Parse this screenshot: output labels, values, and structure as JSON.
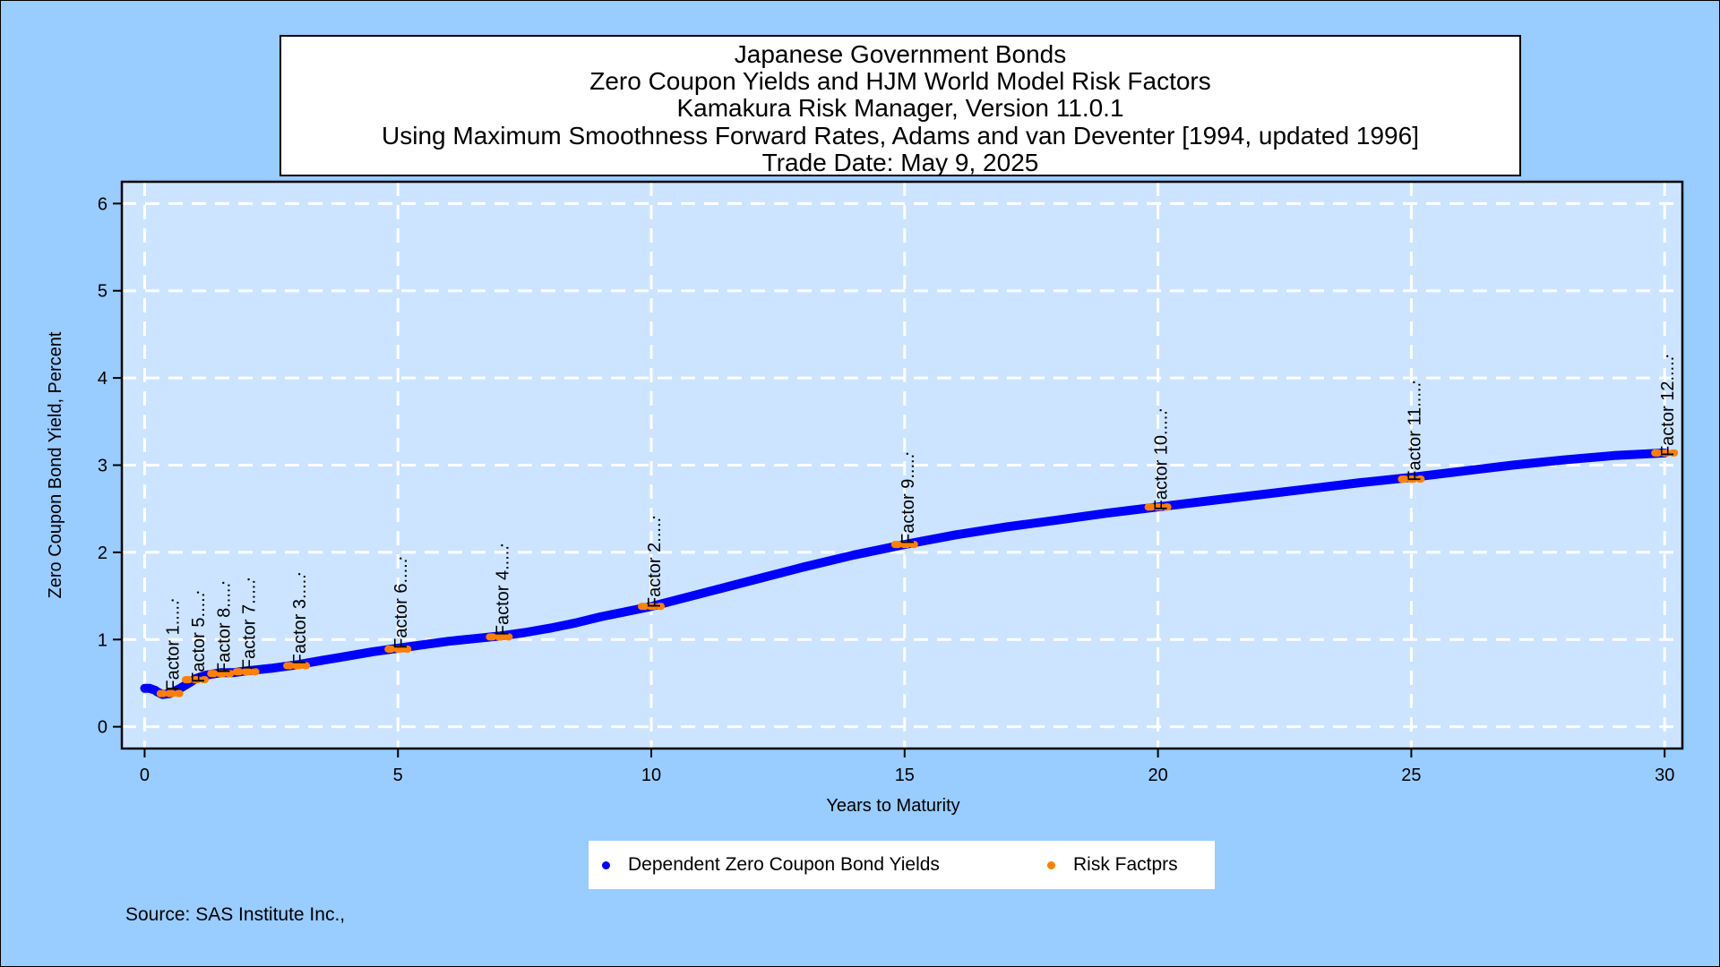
{
  "title_lines": [
    "Japanese Government Bonds",
    "Zero Coupon Yields and HJM World Model Risk Factors",
    "Kamakura Risk Manager, Version 11.0.1",
    "Using Maximum Smoothness Forward Rates, Adams and van Deventer [1994, updated 1996]",
    "Trade Date: May 9, 2025"
  ],
  "legend": {
    "yields_label": "Dependent Zero Coupon Bond Yields",
    "factors_label": "Risk Factprs"
  },
  "source": "Source: SAS Institute Inc.,",
  "colors": {
    "background": "#99ccff",
    "plot_area": "#cce4ff",
    "yield_curve": "#0000ff",
    "risk_factors": "#ff8000",
    "grid": "#ffffff"
  },
  "chart_data": {
    "type": "line",
    "xlabel": "Years to Maturity",
    "ylabel": "Zero Coupon Bond Yield, Percent",
    "xlim": [
      -0.45,
      30.35
    ],
    "ylim": [
      -0.25,
      6.25
    ],
    "x_ticks": [
      0,
      5,
      10,
      15,
      20,
      25,
      30
    ],
    "y_ticks": [
      0,
      1,
      2,
      3,
      4,
      5,
      6
    ],
    "grid": true,
    "legend_position": "bottom",
    "series": [
      {
        "name": "Dependent Zero Coupon Bond Yields",
        "kind": "curve",
        "x": [
          0,
          0.1,
          0.2,
          0.25,
          0.35,
          0.5,
          0.7,
          0.9,
          1.0,
          1.2,
          1.5,
          1.75,
          2.0,
          2.5,
          3.0,
          3.5,
          4.0,
          4.5,
          5.0,
          5.5,
          6.0,
          6.5,
          7.0,
          7.5,
          8.0,
          8.5,
          9.0,
          9.5,
          10.0,
          11.0,
          12.0,
          13.0,
          14.0,
          15.0,
          16.0,
          17.0,
          18.0,
          19.0,
          20.0,
          21.0,
          22.0,
          23.0,
          24.0,
          25.0,
          26.0,
          27.0,
          28.0,
          29.0,
          30.0
        ],
        "y": [
          0.44,
          0.44,
          0.42,
          0.4,
          0.37,
          0.38,
          0.44,
          0.51,
          0.55,
          0.59,
          0.62,
          0.62,
          0.64,
          0.67,
          0.71,
          0.76,
          0.81,
          0.86,
          0.9,
          0.94,
          0.98,
          1.01,
          1.04,
          1.08,
          1.13,
          1.19,
          1.26,
          1.32,
          1.38,
          1.53,
          1.68,
          1.83,
          1.97,
          2.09,
          2.2,
          2.29,
          2.37,
          2.45,
          2.52,
          2.59,
          2.66,
          2.73,
          2.8,
          2.86,
          2.93,
          3.0,
          3.06,
          3.11,
          3.14
        ]
      },
      {
        "name": "Risk Factprs",
        "kind": "factors",
        "points": [
          {
            "label": "Factor 1.....",
            "x": 0.5,
            "y": 0.38,
            "label_y": 1.45
          },
          {
            "label": "Factor 5.....",
            "x": 1.0,
            "y": 0.54,
            "label_y": 1.54
          },
          {
            "label": "Factor 8.....",
            "x": 1.5,
            "y": 0.61,
            "label_y": 1.65
          },
          {
            "label": "Factor 7.....",
            "x": 2.0,
            "y": 0.63,
            "label_y": 1.69
          },
          {
            "label": "Factor 3.....",
            "x": 3.0,
            "y": 0.7,
            "label_y": 1.75
          },
          {
            "label": "Factor 6.....",
            "x": 5.0,
            "y": 0.89,
            "label_y": 1.93
          },
          {
            "label": "Factor 4.....",
            "x": 7.0,
            "y": 1.03,
            "label_y": 2.08
          },
          {
            "label": "Factor 2.....",
            "x": 10.0,
            "y": 1.38,
            "label_y": 2.4
          },
          {
            "label": "Factor 9.....",
            "x": 15.0,
            "y": 2.09,
            "label_y": 3.13
          },
          {
            "label": "Factor 10.....",
            "x": 20.0,
            "y": 2.52,
            "label_y": 3.63
          },
          {
            "label": "Factor 11.....",
            "x": 25.0,
            "y": 2.84,
            "label_y": 3.95
          },
          {
            "label": "Factor 12.....",
            "x": 30.0,
            "y": 3.14,
            "label_y": 4.25
          }
        ]
      }
    ]
  }
}
